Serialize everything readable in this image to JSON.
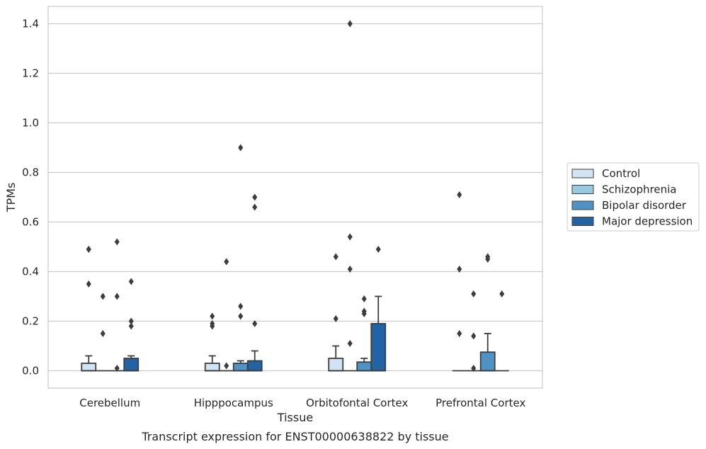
{
  "chart_data": {
    "type": "boxplot",
    "caption": "Transcript expression for ENST00000638822 by tissue",
    "xlabel": "Tissue",
    "ylabel": "TPMs",
    "ylim": [
      -0.07,
      1.47
    ],
    "yticks": [
      "0.0",
      "0.2",
      "0.4",
      "0.6",
      "0.8",
      "1.0",
      "1.2",
      "1.4"
    ],
    "grid": "horizontal",
    "legend_position": "right",
    "categories": [
      "Cerebellum",
      "Hipppocampus",
      "Orbitofontal Cortex",
      "Prefrontal Cortex"
    ],
    "series": [
      {
        "name": "Control",
        "color": "#d2e3f3",
        "boxes": [
          {
            "q1": 0.0,
            "q3": 0.03,
            "median": 0.0,
            "whisker_low": 0.0,
            "whisker_high": 0.06,
            "outliers": [
              0.49,
              0.49,
              0.35
            ]
          },
          {
            "q1": 0.0,
            "q3": 0.03,
            "median": 0.0,
            "whisker_low": 0.0,
            "whisker_high": 0.06,
            "outliers": [
              0.22,
              0.19,
              0.18
            ]
          },
          {
            "q1": 0.0,
            "q3": 0.05,
            "median": 0.0,
            "whisker_low": 0.0,
            "whisker_high": 0.1,
            "outliers": [
              0.46,
              0.21
            ]
          },
          {
            "q1": 0.0,
            "q3": 0.0,
            "median": 0.0,
            "whisker_low": 0.0,
            "whisker_high": 0.0,
            "outliers": [
              0.71,
              0.41,
              0.15
            ]
          }
        ]
      },
      {
        "name": "Schizophrenia",
        "color": "#9ac8e0",
        "boxes": [
          {
            "q1": 0.0,
            "q3": 0.0,
            "median": 0.0,
            "whisker_low": 0.0,
            "whisker_high": 0.0,
            "outliers": [
              0.3,
              0.15
            ]
          },
          {
            "q1": 0.0,
            "q3": 0.0,
            "median": 0.0,
            "whisker_low": 0.0,
            "whisker_high": 0.0,
            "outliers": [
              0.44,
              0.02
            ]
          },
          {
            "q1": 0.0,
            "q3": 0.0,
            "median": 0.0,
            "whisker_low": 0.0,
            "whisker_high": 0.0,
            "outliers": [
              1.4,
              0.54,
              0.41,
              0.11
            ]
          },
          {
            "q1": 0.0,
            "q3": 0.0,
            "median": 0.0,
            "whisker_low": 0.0,
            "whisker_high": 0.0,
            "outliers": [
              0.31,
              0.14,
              0.01
            ]
          }
        ]
      },
      {
        "name": "Bipolar disorder",
        "color": "#4f93c4",
        "boxes": [
          {
            "q1": 0.0,
            "q3": 0.0,
            "median": 0.0,
            "whisker_low": 0.0,
            "whisker_high": 0.0,
            "outliers": [
              0.52,
              0.3,
              0.01
            ]
          },
          {
            "q1": 0.0,
            "q3": 0.03,
            "median": 0.0,
            "whisker_low": 0.0,
            "whisker_high": 0.04,
            "outliers": [
              0.9,
              0.26,
              0.22
            ]
          },
          {
            "q1": 0.0,
            "q3": 0.035,
            "median": 0.0,
            "whisker_low": 0.0,
            "whisker_high": 0.05,
            "outliers": [
              0.29,
              0.24,
              0.23
            ]
          },
          {
            "q1": 0.0,
            "q3": 0.075,
            "median": 0.0,
            "whisker_low": 0.0,
            "whisker_high": 0.15,
            "outliers": [
              0.46,
              0.45
            ]
          }
        ]
      },
      {
        "name": "Major depression",
        "color": "#2263a6",
        "boxes": [
          {
            "q1": 0.0,
            "q3": 0.05,
            "median": 0.0,
            "whisker_low": 0.0,
            "whisker_high": 0.06,
            "outliers": [
              0.36,
              0.2,
              0.18
            ]
          },
          {
            "q1": 0.0,
            "q3": 0.04,
            "median": 0.0,
            "whisker_low": 0.0,
            "whisker_high": 0.08,
            "outliers": [
              0.7,
              0.66,
              0.19
            ]
          },
          {
            "q1": 0.0,
            "q3": 0.19,
            "median": 0.0,
            "whisker_low": 0.0,
            "whisker_high": 0.3,
            "outliers": [
              0.49
            ]
          },
          {
            "q1": 0.0,
            "q3": 0.0,
            "median": 0.0,
            "whisker_low": 0.0,
            "whisker_high": 0.0,
            "outliers": [
              0.31
            ]
          }
        ]
      }
    ]
  }
}
